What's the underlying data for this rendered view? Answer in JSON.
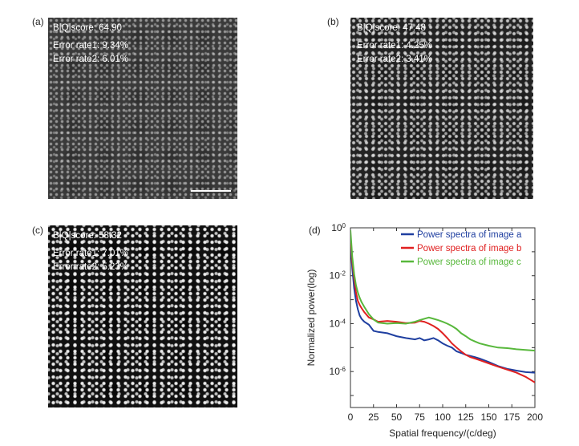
{
  "panels": [
    {
      "label": "(a)",
      "metrics": [
        "B|Q|score: 64.90",
        "Error rate1: 9.34%",
        "Error rate2: 6.01%"
      ]
    },
    {
      "label": "(b)",
      "metrics": [
        "B|Q|score: 47.48",
        "Error rate1: 4.25%",
        "Error rate2: 3.41%"
      ]
    },
    {
      "label": "(c)",
      "metrics": [
        "B|Q|score: 58.32",
        "Error rate1: 7.01%",
        "Error rate2: 5.23%"
      ]
    }
  ],
  "chart_panel_label": "(d)",
  "chart_data": {
    "type": "line",
    "title": "",
    "xlabel": "Spatial frequency/(c/deg)",
    "ylabel": "Normalized power(log)",
    "xlim": [
      0,
      200
    ],
    "ylim_log10": [
      -7.5,
      0
    ],
    "y_scale": "log",
    "xticks": [
      0,
      25,
      50,
      75,
      100,
      125,
      150,
      175,
      200
    ],
    "yticks": [
      {
        "base": "10",
        "exp": "0",
        "log": 0
      },
      {
        "base": "10",
        "exp": "-2",
        "log": -2
      },
      {
        "base": "10",
        "exp": "-4",
        "log": -4
      },
      {
        "base": "10",
        "exp": "-6",
        "log": -6
      }
    ],
    "legend_position": "top-right",
    "series": [
      {
        "name": "Power spectra of image a",
        "color": "#1f3fa0",
        "x": [
          0,
          2,
          4,
          6,
          8,
          10,
          12,
          15,
          20,
          25,
          30,
          40,
          50,
          60,
          70,
          75,
          80,
          85,
          90,
          95,
          100,
          105,
          110,
          115,
          120,
          125,
          130,
          135,
          140,
          150,
          160,
          170,
          180,
          190,
          200
        ],
        "y": [
          0.3,
          0.02,
          0.003,
          0.0009,
          0.0004,
          0.00022,
          0.00016,
          0.00012,
          9e-05,
          5e-05,
          4.5e-05,
          4e-05,
          3e-05,
          2.5e-05,
          2.2e-05,
          2.5e-05,
          2e-05,
          2.2e-05,
          2.5e-05,
          2e-05,
          1.5e-05,
          1.2e-05,
          1e-05,
          7e-06,
          6e-06,
          5e-06,
          4.5e-06,
          4e-06,
          3.5e-06,
          2.5e-06,
          1.7e-06,
          1.3e-06,
          1.1e-06,
          9.5e-07,
          9e-07
        ]
      },
      {
        "name": "Power spectra of image b",
        "color": "#e02020",
        "x": [
          0,
          2,
          4,
          6,
          8,
          10,
          12,
          15,
          20,
          25,
          30,
          40,
          50,
          60,
          70,
          75,
          80,
          85,
          90,
          95,
          100,
          105,
          110,
          115,
          120,
          125,
          130,
          135,
          140,
          150,
          160,
          170,
          180,
          190,
          200
        ],
        "y": [
          0.5,
          0.04,
          0.008,
          0.002,
          0.0009,
          0.0006,
          0.00045,
          0.0003,
          0.00018,
          0.00015,
          0.00012,
          0.00013,
          0.00012,
          0.000105,
          0.00011,
          0.00013,
          0.00012,
          0.0001,
          8e-05,
          6e-05,
          4e-05,
          2.5e-05,
          1.5e-05,
          1e-05,
          7e-06,
          5e-06,
          4e-06,
          3.5e-06,
          3e-06,
          2.2e-06,
          1.6e-06,
          1.2e-06,
          9e-07,
          6e-07,
          3.5e-07
        ]
      },
      {
        "name": "Power spectra of image c",
        "color": "#58b83c",
        "x": [
          0,
          2,
          4,
          6,
          8,
          10,
          12,
          15,
          20,
          25,
          30,
          40,
          50,
          60,
          70,
          75,
          80,
          85,
          90,
          95,
          100,
          105,
          110,
          115,
          120,
          125,
          130,
          135,
          140,
          150,
          160,
          170,
          180,
          190,
          200
        ],
        "y": [
          0.8,
          0.06,
          0.012,
          0.004,
          0.002,
          0.0012,
          0.0008,
          0.0005,
          0.00025,
          0.00015,
          0.00011,
          0.0001,
          0.000105,
          0.0001,
          0.00012,
          0.00014,
          0.00016,
          0.00018,
          0.00016,
          0.00014,
          0.00012,
          0.0001,
          8e-05,
          6e-05,
          4e-05,
          3e-05,
          2.2e-05,
          1.8e-05,
          1.5e-05,
          1.2e-05,
          1e-05,
          9.5e-06,
          8.5e-06,
          8e-06,
          7.5e-06
        ]
      }
    ]
  }
}
